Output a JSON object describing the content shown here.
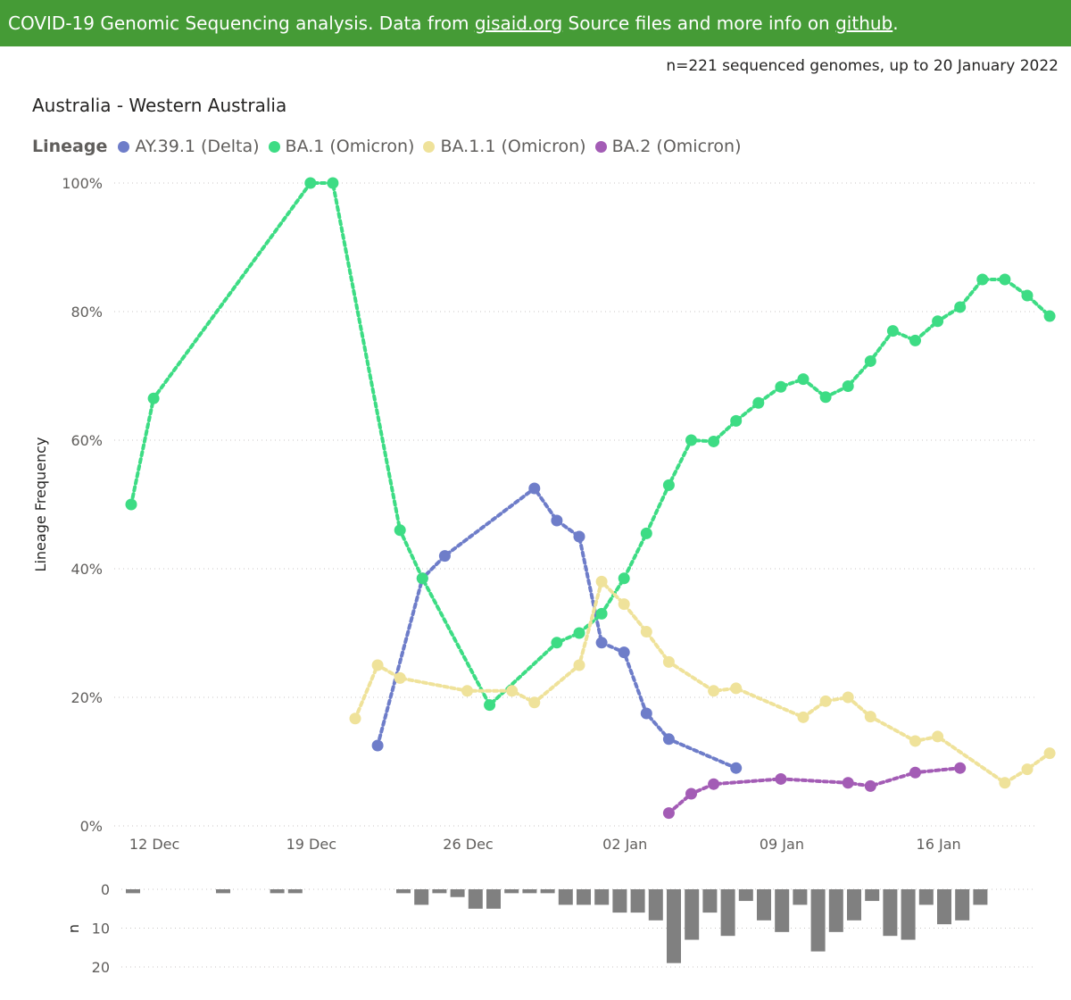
{
  "banner": {
    "text1": "COVID-19 Genomic Sequencing analysis. Data from ",
    "link1": "gisaid.org",
    "text2": " Source files and more info on ",
    "link2": "github",
    "text3": "."
  },
  "n_info": "n=221 sequenced genomes, up to 20 January 2022",
  "chart_data": [
    {
      "type": "line",
      "title": "Australia - Western Australia",
      "ylabel": "Lineage Frequency",
      "legend_title": "Lineage",
      "legend_position": "top-left",
      "x_axis": {
        "type": "date",
        "range": [
          "2021-12-11",
          "2022-01-20"
        ],
        "ticks": [
          {
            "date": "2021-12-12",
            "label": "12 Dec"
          },
          {
            "date": "2021-12-19",
            "label": "19 Dec"
          },
          {
            "date": "2021-12-26",
            "label": "26 Dec"
          },
          {
            "date": "2022-01-02",
            "label": "02 Jan"
          },
          {
            "date": "2022-01-09",
            "label": "09 Jan"
          },
          {
            "date": "2022-01-16",
            "label": "16 Jan"
          }
        ]
      },
      "y_axis": {
        "ylim": [
          0,
          100
        ],
        "ticks": [
          {
            "value": 0,
            "label": "0%"
          },
          {
            "value": 20,
            "label": "20%"
          },
          {
            "value": 40,
            "label": "40%"
          },
          {
            "value": 60,
            "label": "60%"
          },
          {
            "value": 80,
            "label": "80%"
          },
          {
            "value": 100,
            "label": "100%"
          }
        ]
      },
      "grid": true,
      "series": [
        {
          "name": "AY.39.1 (Delta)",
          "color": "#6e7dc9",
          "points": [
            {
              "x": "2021-12-22",
              "y": 12.5
            },
            {
              "x": "2021-12-24",
              "y": 38.5
            },
            {
              "x": "2021-12-25",
              "y": 42
            },
            {
              "x": "2021-12-29",
              "y": 52.5
            },
            {
              "x": "2021-12-30",
              "y": 47.5
            },
            {
              "x": "2021-12-31",
              "y": 45
            },
            {
              "x": "2022-01-01",
              "y": 28.5
            },
            {
              "x": "2022-01-02",
              "y": 27
            },
            {
              "x": "2022-01-03",
              "y": 17.5
            },
            {
              "x": "2022-01-04",
              "y": 13.5
            },
            {
              "x": "2022-01-07",
              "y": 9
            }
          ]
        },
        {
          "name": "BA.1 (Omicron)",
          "color": "#3ddc84",
          "points": [
            {
              "x": "2021-12-11",
              "y": 50
            },
            {
              "x": "2021-12-12",
              "y": 66.5
            },
            {
              "x": "2021-12-19",
              "y": 100
            },
            {
              "x": "2021-12-20",
              "y": 100
            },
            {
              "x": "2021-12-23",
              "y": 46
            },
            {
              "x": "2021-12-24",
              "y": 38.5
            },
            {
              "x": "2021-12-27",
              "y": 18.8
            },
            {
              "x": "2021-12-30",
              "y": 28.5
            },
            {
              "x": "2021-12-31",
              "y": 30
            },
            {
              "x": "2022-01-01",
              "y": 33
            },
            {
              "x": "2022-01-02",
              "y": 38.5
            },
            {
              "x": "2022-01-03",
              "y": 45.5
            },
            {
              "x": "2022-01-04",
              "y": 53
            },
            {
              "x": "2022-01-05",
              "y": 60
            },
            {
              "x": "2022-01-06",
              "y": 59.8
            },
            {
              "x": "2022-01-07",
              "y": 63
            },
            {
              "x": "2022-01-08",
              "y": 65.8
            },
            {
              "x": "2022-01-09",
              "y": 68.3
            },
            {
              "x": "2022-01-10",
              "y": 69.5
            },
            {
              "x": "2022-01-11",
              "y": 66.7
            },
            {
              "x": "2022-01-12",
              "y": 68.4
            },
            {
              "x": "2022-01-13",
              "y": 72.3
            },
            {
              "x": "2022-01-14",
              "y": 77
            },
            {
              "x": "2022-01-15",
              "y": 75.5
            },
            {
              "x": "2022-01-16",
              "y": 78.5
            },
            {
              "x": "2022-01-17",
              "y": 80.7
            },
            {
              "x": "2022-01-18",
              "y": 85
            },
            {
              "x": "2022-01-19",
              "y": 85
            },
            {
              "x": "2022-01-20",
              "y": 82.5
            },
            {
              "x": "2022-01-21",
              "y": 79.3
            }
          ]
        },
        {
          "name": "BA.1.1 (Omicron)",
          "color": "#efe29a",
          "points": [
            {
              "x": "2021-12-21",
              "y": 16.7
            },
            {
              "x": "2021-12-22",
              "y": 25
            },
            {
              "x": "2021-12-23",
              "y": 23
            },
            {
              "x": "2021-12-26",
              "y": 21
            },
            {
              "x": "2021-12-28",
              "y": 21
            },
            {
              "x": "2021-12-29",
              "y": 19.2
            },
            {
              "x": "2021-12-31",
              "y": 25
            },
            {
              "x": "2022-01-01",
              "y": 38
            },
            {
              "x": "2022-01-02",
              "y": 34.5
            },
            {
              "x": "2022-01-03",
              "y": 30.2
            },
            {
              "x": "2022-01-04",
              "y": 25.5
            },
            {
              "x": "2022-01-06",
              "y": 21
            },
            {
              "x": "2022-01-07",
              "y": 21.4
            },
            {
              "x": "2022-01-10",
              "y": 16.9
            },
            {
              "x": "2022-01-11",
              "y": 19.4
            },
            {
              "x": "2022-01-12",
              "y": 20
            },
            {
              "x": "2022-01-13",
              "y": 17
            },
            {
              "x": "2022-01-15",
              "y": 13.2
            },
            {
              "x": "2022-01-16",
              "y": 13.9
            },
            {
              "x": "2022-01-19",
              "y": 6.7
            },
            {
              "x": "2022-01-20",
              "y": 8.8
            },
            {
              "x": "2022-01-21",
              "y": 11.3
            }
          ]
        },
        {
          "name": "BA.2 (Omicron)",
          "color": "#a35cb5",
          "points": [
            {
              "x": "2022-01-04",
              "y": 2
            },
            {
              "x": "2022-01-05",
              "y": 5
            },
            {
              "x": "2022-01-06",
              "y": 6.5
            },
            {
              "x": "2022-01-09",
              "y": 7.3
            },
            {
              "x": "2022-01-12",
              "y": 6.7
            },
            {
              "x": "2022-01-13",
              "y": 6.2
            },
            {
              "x": "2022-01-15",
              "y": 8.3
            },
            {
              "x": "2022-01-17",
              "y": 9
            }
          ]
        }
      ]
    },
    {
      "type": "bar",
      "ylabel": "n",
      "orientation": "downward",
      "ylim": [
        0,
        20
      ],
      "y_ticks": [
        {
          "value": 0,
          "label": "0"
        },
        {
          "value": 10,
          "label": "10"
        },
        {
          "value": 20,
          "label": "20"
        }
      ],
      "color": "#808080",
      "grid": true,
      "bars": [
        {
          "x": "2021-12-11",
          "value": 1
        },
        {
          "x": "2021-12-16",
          "value": 1
        },
        {
          "x": "2021-12-19",
          "value": 1
        },
        {
          "x": "2021-12-20",
          "value": 1
        },
        {
          "x": "2021-12-26",
          "value": 1
        },
        {
          "x": "2021-12-27",
          "value": 4
        },
        {
          "x": "2021-12-28",
          "value": 1
        },
        {
          "x": "2021-12-29",
          "value": 2
        },
        {
          "x": "2021-12-30",
          "value": 5
        },
        {
          "x": "2021-12-31",
          "value": 5
        },
        {
          "x": "2022-01-01",
          "value": 1
        },
        {
          "x": "2022-01-02",
          "value": 1
        },
        {
          "x": "2022-01-03",
          "value": 1
        },
        {
          "x": "2022-01-04",
          "value": 4
        },
        {
          "x": "2022-01-05",
          "value": 4
        },
        {
          "x": "2022-01-06",
          "value": 4
        },
        {
          "x": "2022-01-07",
          "value": 6
        },
        {
          "x": "2022-01-08",
          "value": 6
        },
        {
          "x": "2022-01-09",
          "value": 8
        },
        {
          "x": "2022-01-10",
          "value": 19
        },
        {
          "x": "2022-01-11",
          "value": 13
        },
        {
          "x": "2022-01-12",
          "value": 6
        },
        {
          "x": "2022-01-13",
          "value": 12
        },
        {
          "x": "2022-01-14",
          "value": 3
        },
        {
          "x": "2022-01-15",
          "value": 8
        },
        {
          "x": "2022-01-16",
          "value": 11
        },
        {
          "x": "2022-01-17",
          "value": 4
        },
        {
          "x": "2022-01-18",
          "value": 16
        },
        {
          "x": "2022-01-19",
          "value": 11
        },
        {
          "x": "2022-01-20",
          "value": 8
        },
        {
          "x": "2022-01-21",
          "value": 3
        },
        {
          "x": "2022-01-22",
          "value": 12
        },
        {
          "x": "2022-01-23",
          "value": 13
        },
        {
          "x": "2022-01-24",
          "value": 4
        },
        {
          "x": "2022-01-25",
          "value": 9
        },
        {
          "x": "2022-01-26",
          "value": 8
        },
        {
          "x": "2022-01-27",
          "value": 4
        }
      ]
    }
  ]
}
